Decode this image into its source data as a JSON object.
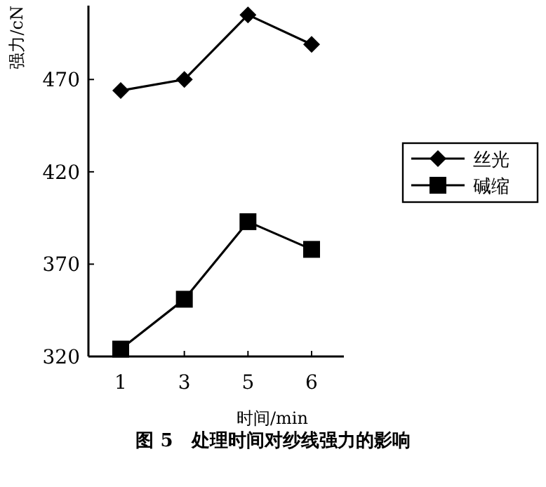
{
  "chart_data": {
    "type": "line",
    "title": "图 5　处理时间对纱线强力的影响",
    "xlabel": "时间/min",
    "ylabel": "强力/cN",
    "categories": [
      "1",
      "3",
      "5",
      "6"
    ],
    "series": [
      {
        "name": "丝光",
        "color": "#000000",
        "marker": "diamond",
        "values": [
          464,
          470,
          505,
          489
        ]
      },
      {
        "name": "碱缩",
        "color": "#000000",
        "marker": "square",
        "values": [
          324,
          351,
          393,
          378
        ]
      }
    ],
    "ylim": [
      320,
      510
    ],
    "yticks": [
      320,
      370,
      420,
      470
    ],
    "grid": false,
    "legend": "right",
    "line_style": "solid"
  }
}
